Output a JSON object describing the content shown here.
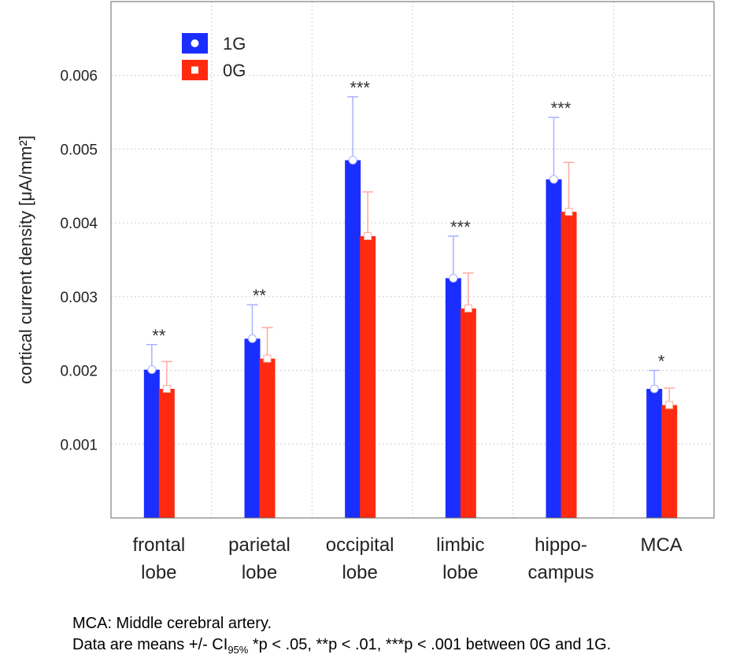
{
  "chart_data": {
    "type": "bar",
    "ylabel": "cortical current density [μA/mm²]",
    "ylim": [
      0,
      0.007
    ],
    "yticks": [
      "0.001",
      "0.002",
      "0.003",
      "0.004",
      "0.005",
      "0.006"
    ],
    "grid": true,
    "legend_position": "top-left",
    "categories": [
      {
        "line1": "frontal",
        "line2": "lobe"
      },
      {
        "line1": "parietal",
        "line2": "lobe"
      },
      {
        "line1": "occipital",
        "line2": "lobe"
      },
      {
        "line1": "limbic",
        "line2": "lobe"
      },
      {
        "line1": "hippo-",
        "line2": "campus"
      },
      {
        "line1": "MCA",
        "line2": ""
      }
    ],
    "series": [
      {
        "name": "1G",
        "color": "#1a2eff",
        "errcolor": "#aab2ff",
        "values": [
          0.00201,
          0.00243,
          0.00485,
          0.00325,
          0.00459,
          0.00175
        ],
        "ci_upper": [
          0.00235,
          0.00289,
          0.00571,
          0.00382,
          0.00543,
          0.002
        ]
      },
      {
        "name": "0G",
        "color": "#ff2a10",
        "errcolor": "#ffaaa0",
        "values": [
          0.00175,
          0.00216,
          0.00382,
          0.00284,
          0.00415,
          0.00153
        ],
        "ci_upper": [
          0.00212,
          0.00258,
          0.00442,
          0.00332,
          0.00482,
          0.00176
        ]
      }
    ],
    "significance": [
      "**",
      "**",
      "***",
      "***",
      "***",
      "*"
    ]
  },
  "caption": {
    "line1": "MCA: Middle cerebral artery.",
    "line2_prefix": "Data are means +/- CI",
    "line2_sub": "95%",
    "line2_suffix": " *p < .05, **p < .01, ***p < .001 between 0G and 1G."
  }
}
